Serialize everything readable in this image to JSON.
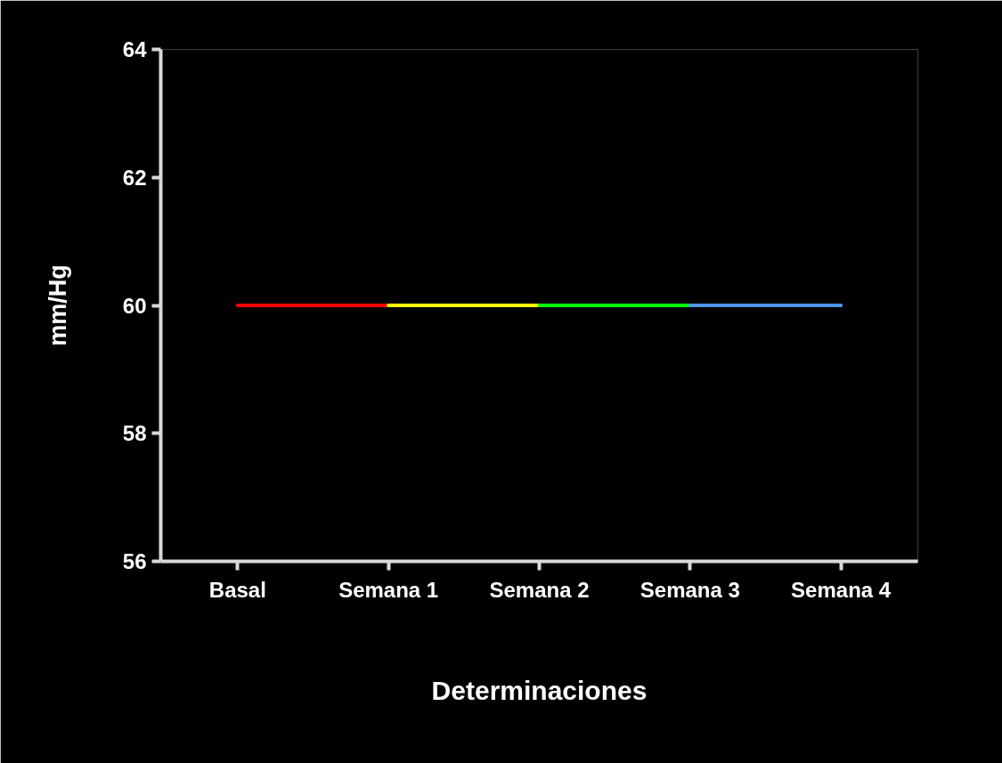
{
  "chart_data": {
    "type": "line",
    "xlabel": "Determinaciones",
    "ylabel": "mm/Hg",
    "categories": [
      "Basal",
      "Semana 1",
      "Semana 2",
      "Semana 3",
      "Semana 4"
    ],
    "series": [
      {
        "color": "#ff0000",
        "values": [
          60,
          60,
          null,
          null,
          null
        ]
      },
      {
        "color": "#ffff00",
        "values": [
          null,
          60,
          60,
          null,
          null
        ]
      },
      {
        "color": "#00ff00",
        "values": [
          null,
          null,
          60,
          60,
          null
        ]
      },
      {
        "color": "#4f94e8",
        "values": [
          null,
          null,
          null,
          60,
          60
        ]
      }
    ],
    "ylim": [
      56,
      64
    ],
    "yticks": [
      56,
      58,
      60,
      62,
      64
    ]
  }
}
